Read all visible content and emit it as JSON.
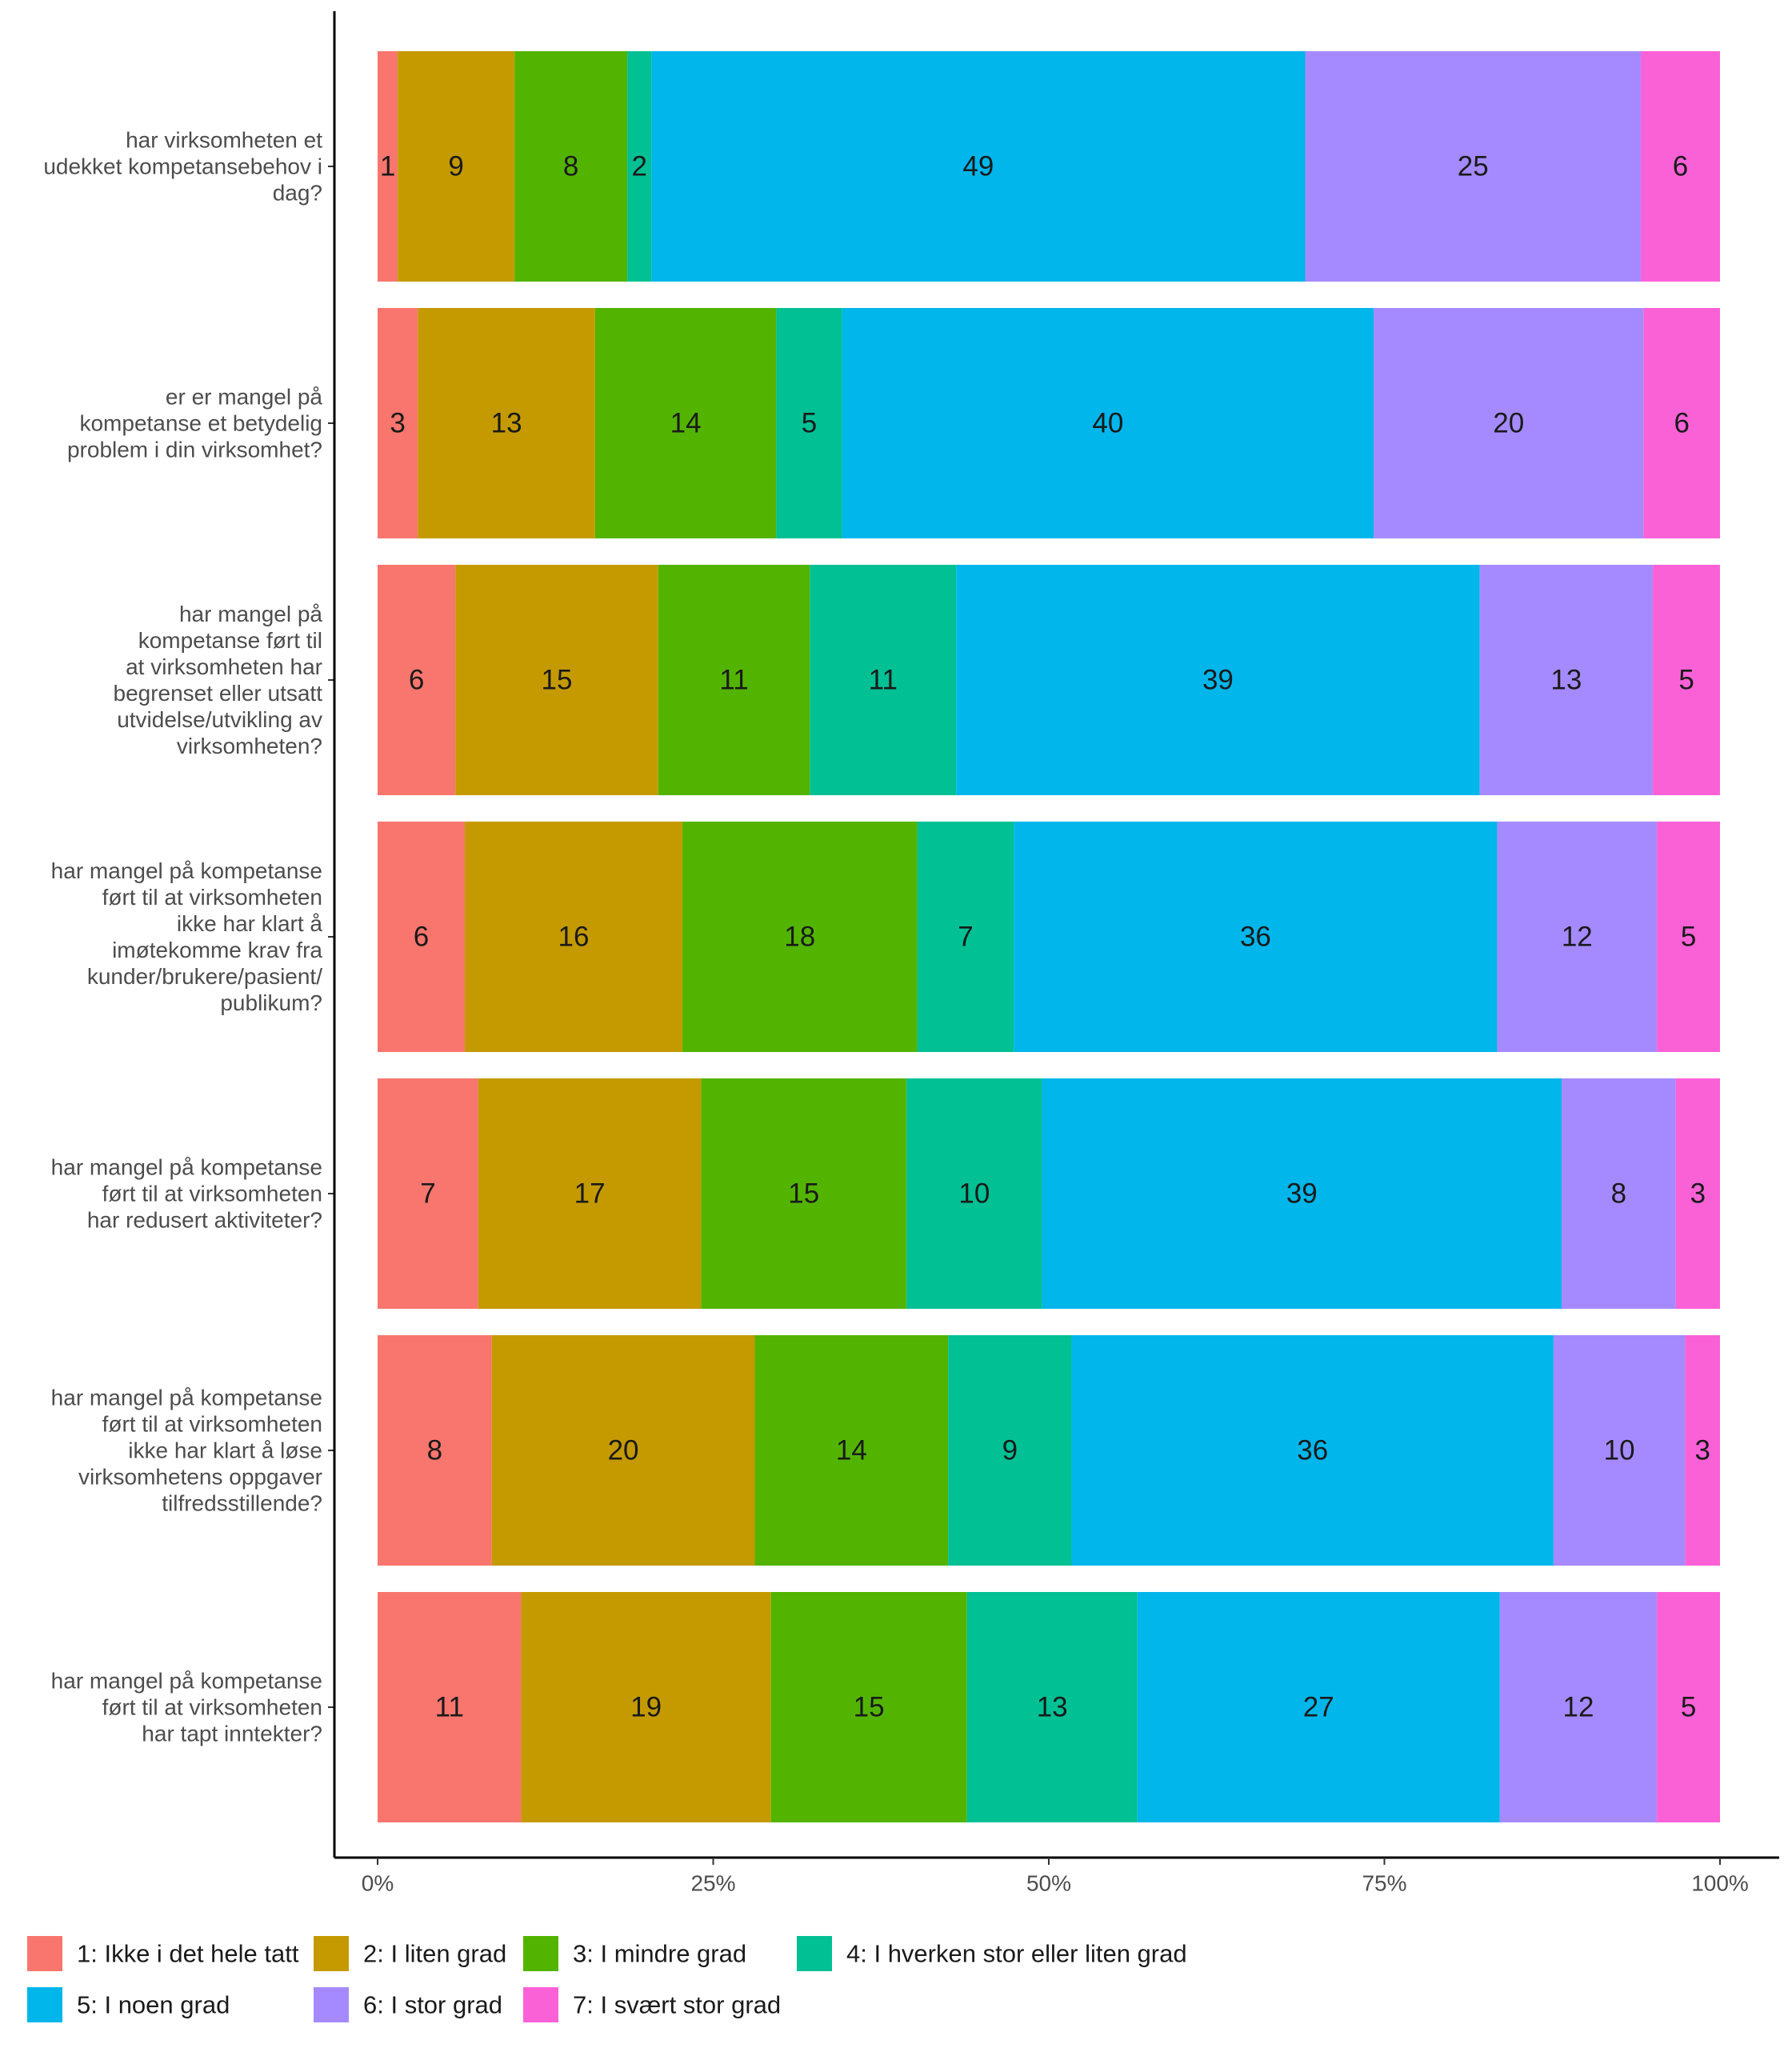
{
  "chart_data": {
    "type": "bar",
    "orientation": "horizontal",
    "stacked": "percent",
    "grid": false,
    "legend_position": "bottom",
    "categories": [
      "har virksomheten et udekket kompetansebehov i dag?",
      "er er mangel på kompetanse et betydelig problem i din virksomhet?",
      "har mangel på kompetanse ført til at virksomheten har begrenset eller utsatt utvidelse/utvikling av virksomheten?",
      "har mangel på kompetanse ført til at virksomheten ikke har klart å imøtekomme krav fra kunder/brukere/pasient/ publikum?",
      "har mangel på kompetanse ført til at virksomheten har redusert aktiviteter?",
      "har mangel på kompetanse ført til at virksomheten ikke har klart å løse virksomhetens oppgaver tilfredsstillende?",
      "har mangel på kompetanse ført til at virksomheten har tapt inntekter?"
    ],
    "category_lines": [
      [
        "har virksomheten et",
        "udekket kompetansebehov i",
        "dag?"
      ],
      [
        "er er mangel på",
        "kompetanse et betydelig",
        "problem i din virksomhet?"
      ],
      [
        "har mangel på",
        "kompetanse ført til",
        "at virksomheten har",
        "begrenset eller utsatt",
        "utvidelse/utvikling av",
        "virksomheten?"
      ],
      [
        "har mangel på kompetanse",
        "ført til at virksomheten",
        "ikke har klart å",
        "imøtekomme krav fra",
        "kunder/brukere/pasient/",
        "publikum?"
      ],
      [
        "har mangel på kompetanse",
        "ført til at virksomheten",
        "har redusert aktiviteter?"
      ],
      [
        "har mangel på kompetanse",
        "ført til at virksomheten",
        "ikke har klart å løse",
        "virksomhetens oppgaver",
        "tilfredsstillende?"
      ],
      [
        "har mangel på kompetanse",
        "ført til at virksomheten",
        "har tapt inntekter?"
      ]
    ],
    "xlim": [
      0,
      100
    ],
    "x_ticks": [
      "0%",
      "25%",
      "50%",
      "75%",
      "100%"
    ],
    "series": [
      {
        "name": "1: Ikke i det hele tatt",
        "color": "#F8766D",
        "values": [
          1.5,
          3,
          5.8,
          6.5,
          7.5,
          8.5,
          10.7
        ]
      },
      {
        "name": "2: I liten grad",
        "color": "#C49A00",
        "values": [
          8.7,
          13.2,
          15.1,
          16.2,
          16.6,
          19.6,
          18.6
        ]
      },
      {
        "name": "3: I mindre grad",
        "color": "#53B400",
        "values": [
          8.4,
          13.5,
          11.3,
          17.5,
          15.3,
          14.4,
          14.6
        ]
      },
      {
        "name": "4: I hverken stor eller liten grad",
        "color": "#00C094",
        "values": [
          1.8,
          4.9,
          10.9,
          7.2,
          10.1,
          9.2,
          12.7
        ]
      },
      {
        "name": "5: I noen grad",
        "color": "#00B6EB",
        "values": [
          48.7,
          39.6,
          39,
          36,
          38.7,
          35.9,
          27
        ]
      },
      {
        "name": "6: I stor grad",
        "color": "#A58AFF",
        "values": [
          25,
          20.1,
          12.9,
          11.9,
          8.5,
          9.8,
          11.7
        ]
      },
      {
        "name": "7: I svært stor grad",
        "color": "#FB61D7",
        "values": [
          5.9,
          5.7,
          5,
          4.7,
          3.3,
          2.6,
          4.7
        ]
      }
    ],
    "data_labels": [
      [
        "1",
        "9",
        "8",
        "2",
        "49",
        "25",
        "6"
      ],
      [
        "3",
        "13",
        "14",
        "5",
        "40",
        "20",
        "6"
      ],
      [
        "6",
        "15",
        "11",
        "11",
        "39",
        "13",
        "5"
      ],
      [
        "6",
        "16",
        "18",
        "7",
        "36",
        "12",
        "5"
      ],
      [
        "7",
        "17",
        "15",
        "10",
        "39",
        "8",
        "3"
      ],
      [
        "8",
        "20",
        "14",
        "9",
        "36",
        "10",
        "3"
      ],
      [
        "11",
        "19",
        "15",
        "13",
        "27",
        "12",
        "5"
      ]
    ]
  }
}
